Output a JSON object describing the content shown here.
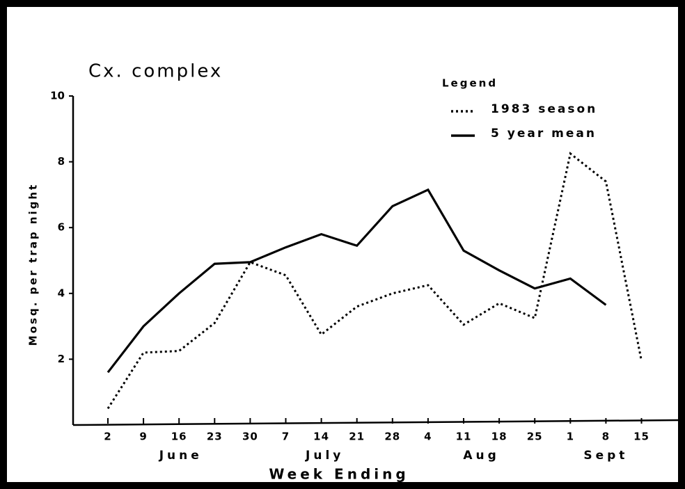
{
  "chart_data": {
    "type": "line",
    "title": "Cx. complex",
    "x_label": "Week Ending",
    "y_label": "Mosq. per trap night",
    "legend_title": "Legend",
    "legend": "upper right",
    "categories": [
      "2",
      "9",
      "16",
      "23",
      "30",
      "7",
      "14",
      "21",
      "28",
      "4",
      "11",
      "18",
      "25",
      "1",
      "8",
      "15"
    ],
    "month_labels": [
      "June",
      "July",
      "Aug",
      "Sept"
    ],
    "series": [
      {
        "name": "1983 season",
        "color": "#000000",
        "line_style": "dotted",
        "values": [
          0.5,
          2.2,
          2.25,
          3.1,
          4.95,
          4.55,
          2.75,
          3.6,
          4.0,
          4.25,
          3.05,
          3.7,
          3.25,
          8.25,
          7.4,
          1.95
        ]
      },
      {
        "name": "5 year mean",
        "color": "#000000",
        "line_style": "solid",
        "values": [
          1.6,
          3.0,
          4.0,
          4.9,
          4.95,
          5.4,
          5.8,
          5.45,
          6.65,
          7.15,
          5.3,
          4.7,
          4.15,
          4.45,
          3.65,
          null
        ]
      }
    ],
    "ylim": [
      0,
      10
    ],
    "yticks": [
      2,
      4,
      6,
      8,
      10
    ],
    "grid": false
  }
}
